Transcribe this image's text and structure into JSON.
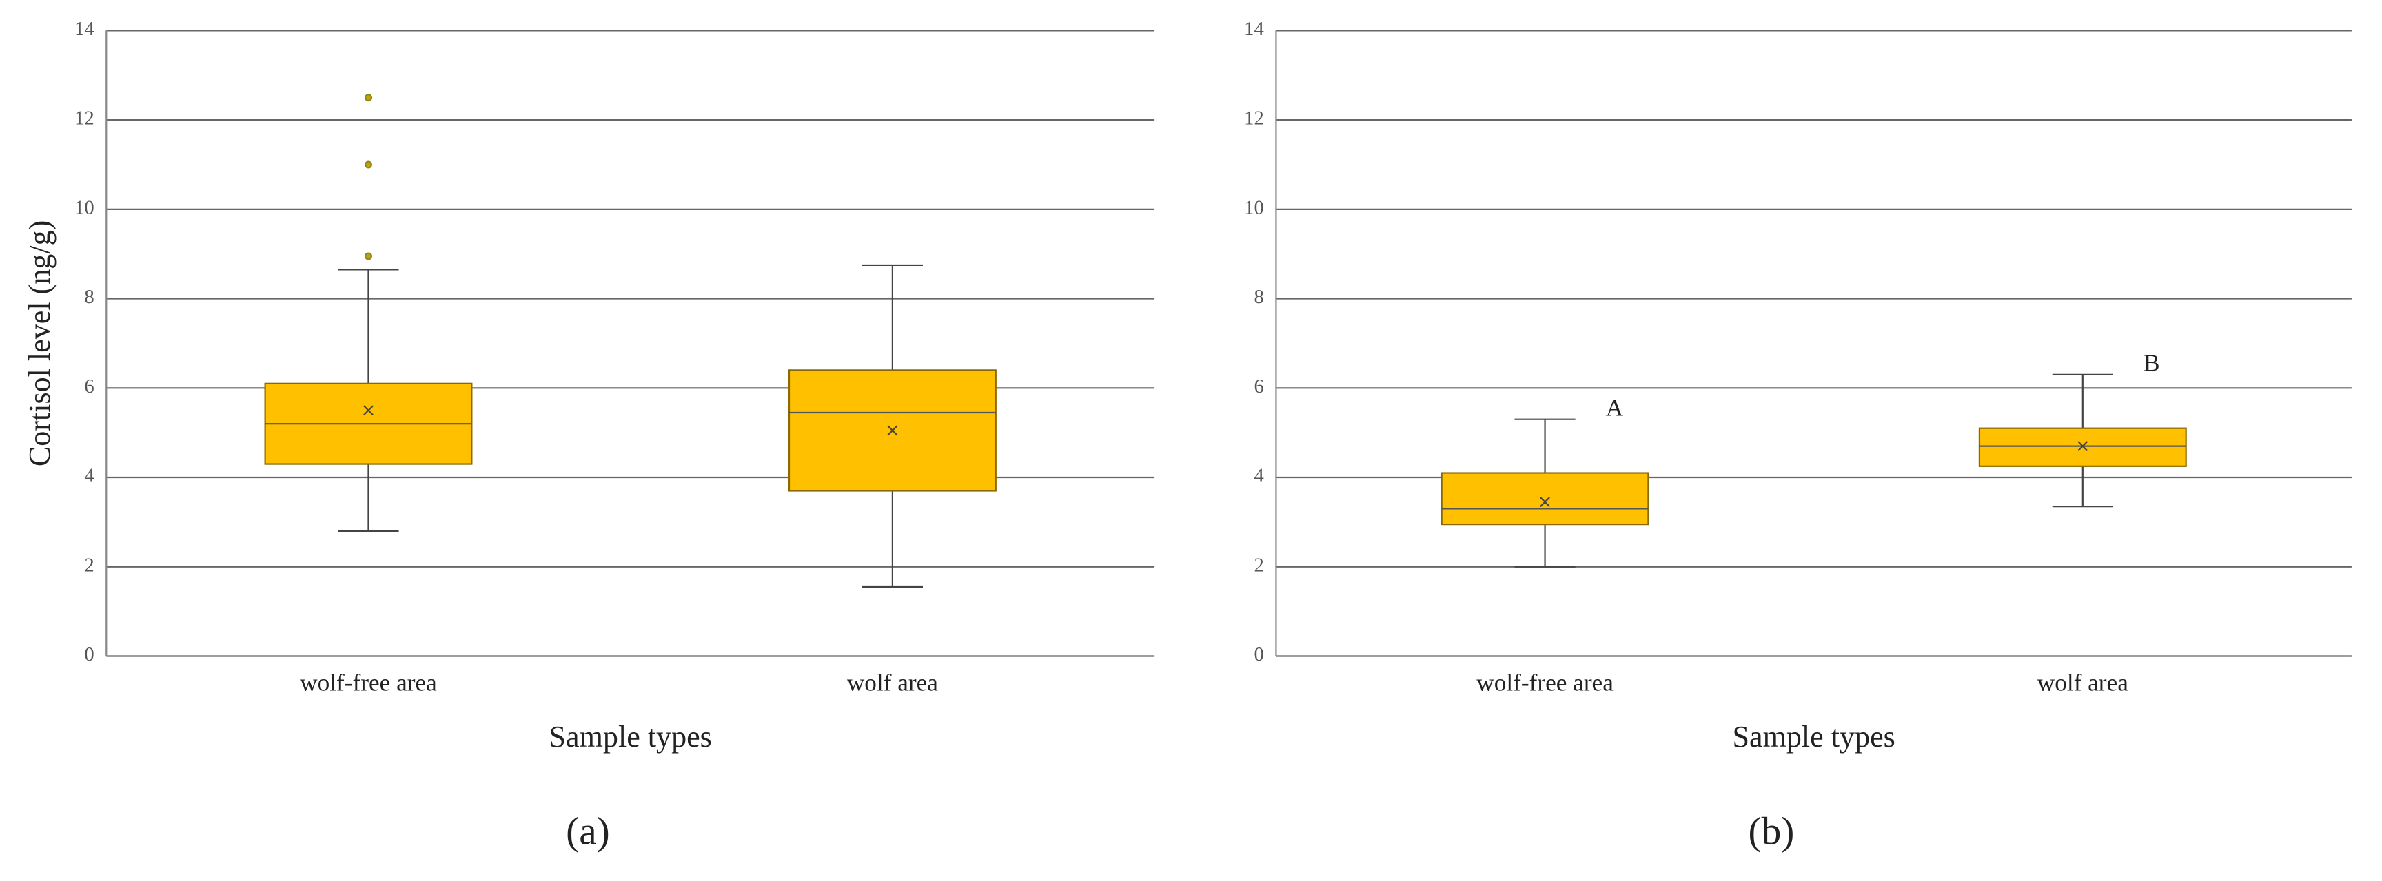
{
  "chart_data": [
    {
      "type": "box",
      "label": "(a)",
      "ylabel": "Cortisol level (ng/g)",
      "xlabel": "Sample types",
      "categories": [
        "wolf-free area",
        "wolf area"
      ],
      "color": "#ffc000",
      "edge_color": "#8a6a00",
      "outlier_color": "#8a8a20",
      "ylim": [
        0,
        14
      ],
      "yticks": [
        0,
        2,
        4,
        6,
        8,
        10,
        12,
        14
      ],
      "grid": true,
      "boxes": [
        {
          "min": 2.8,
          "q1": 4.3,
          "median": 5.2,
          "q3": 6.1,
          "max": 8.65,
          "mean": 5.5,
          "outliers": [
            8.95,
            11.0,
            12.5
          ]
        },
        {
          "min": 1.55,
          "q1": 3.7,
          "median": 5.45,
          "q3": 6.4,
          "max": 8.75,
          "mean": 5.05,
          "outliers": []
        }
      ]
    },
    {
      "type": "box",
      "label": "(b)",
      "xlabel": "Sample types",
      "categories": [
        "wolf-free area",
        "wolf area"
      ],
      "color": "#ffc000",
      "edge_color": "#8a6a00",
      "outlier_color": "#8a8a20",
      "ylim": [
        0,
        14
      ],
      "yticks": [
        0,
        2,
        4,
        6,
        8,
        10,
        12,
        14
      ],
      "grid": true,
      "boxes": [
        {
          "min": 2.0,
          "q1": 2.95,
          "median": 3.3,
          "q3": 4.1,
          "max": 5.3,
          "mean": 3.45,
          "outliers": [],
          "annotation": "A"
        },
        {
          "min": 3.35,
          "q1": 4.25,
          "median": 4.7,
          "q3": 5.1,
          "max": 6.3,
          "mean": 4.7,
          "outliers": [],
          "annotation": "B"
        }
      ]
    }
  ]
}
